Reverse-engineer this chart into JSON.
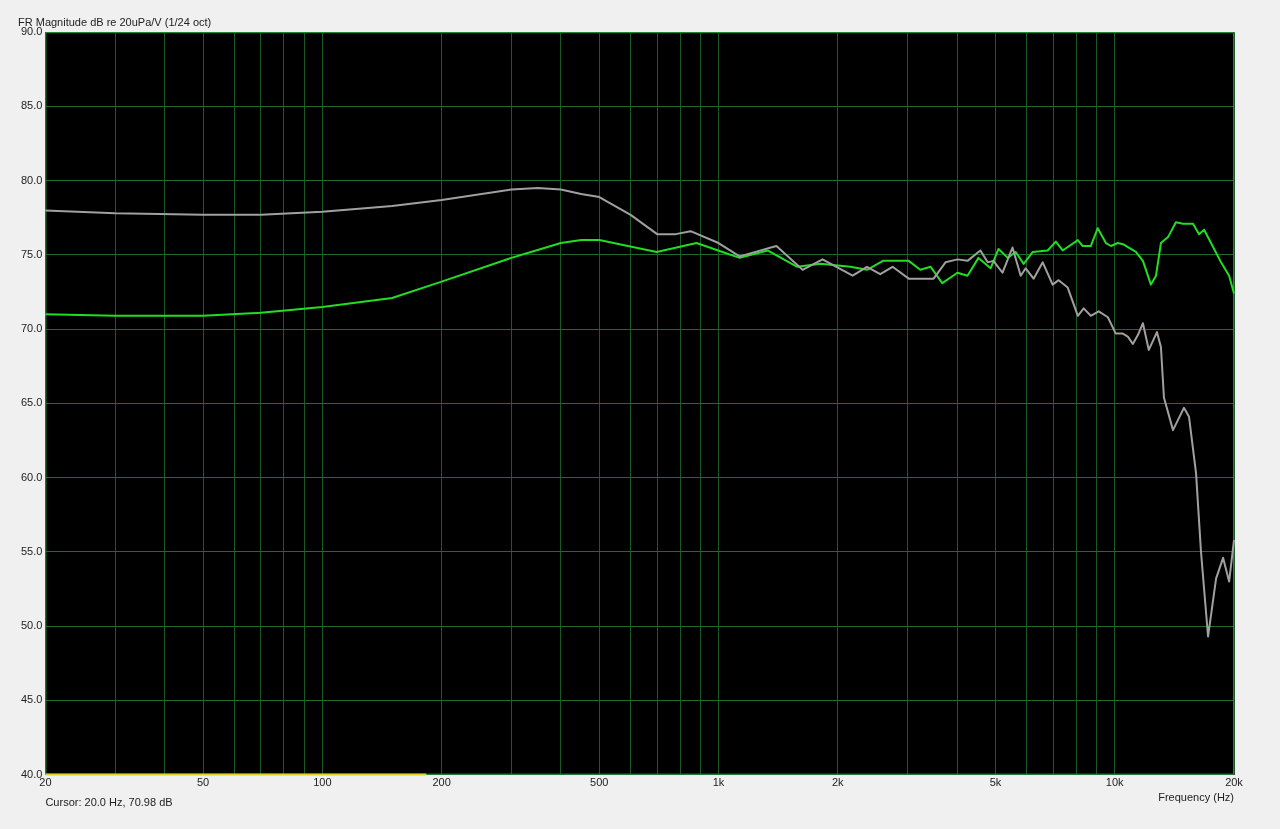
{
  "chart_data": {
    "type": "line",
    "title": "FR Magnitude dB re 20uPa/V (1/24 oct)",
    "xlabel": "Frequency (Hz)",
    "annotations": [
      "Cursor: 20.0 Hz, 70.98 dB"
    ],
    "log": "x",
    "xlim": [
      20,
      20000
    ],
    "ylim": [
      40,
      90
    ],
    "xticks": [
      {
        "value": 20,
        "label": "20"
      },
      {
        "value": 30,
        "label": null
      },
      {
        "value": 40,
        "label": null
      },
      {
        "value": 50,
        "label": "50"
      },
      {
        "value": 60,
        "label": null
      },
      {
        "value": 70,
        "label": null
      },
      {
        "value": 80,
        "label": null
      },
      {
        "value": 90,
        "label": null
      },
      {
        "value": 100,
        "label": "100"
      },
      {
        "value": 200,
        "label": "200"
      },
      {
        "value": 300,
        "label": null
      },
      {
        "value": 400,
        "label": null
      },
      {
        "value": 500,
        "label": "500"
      },
      {
        "value": 600,
        "label": null
      },
      {
        "value": 700,
        "label": null
      },
      {
        "value": 800,
        "label": null
      },
      {
        "value": 900,
        "label": null
      },
      {
        "value": 1000,
        "label": "1k"
      },
      {
        "value": 2000,
        "label": "2k"
      },
      {
        "value": 3000,
        "label": null
      },
      {
        "value": 4000,
        "label": null
      },
      {
        "value": 5000,
        "label": "5k"
      },
      {
        "value": 6000,
        "label": null
      },
      {
        "value": 7000,
        "label": null
      },
      {
        "value": 8000,
        "label": null
      },
      {
        "value": 9000,
        "label": null
      },
      {
        "value": 10000,
        "label": "10k"
      },
      {
        "value": 20000,
        "label": "20k"
      }
    ],
    "yticks": [
      {
        "value": 40,
        "label": "40.0"
      },
      {
        "value": 45,
        "label": "45.0"
      },
      {
        "value": 50,
        "label": "50.0"
      },
      {
        "value": 55,
        "label": "55.0"
      },
      {
        "value": 60,
        "label": "60.0"
      },
      {
        "value": 65,
        "label": "65.0"
      },
      {
        "value": 70,
        "label": "70.0"
      },
      {
        "value": 75,
        "label": "75.0"
      },
      {
        "value": 80,
        "label": "80.0"
      },
      {
        "value": 85,
        "label": "85.0"
      },
      {
        "value": 90,
        "label": "90.0"
      }
    ],
    "grid": true,
    "legend": false,
    "marker": "none",
    "line_style": "solid",
    "series": [
      {
        "color": "#a0a0a0",
        "x": [
          20,
          30,
          50,
          70,
          100,
          150,
          200,
          300,
          350,
          400,
          450,
          500,
          600,
          700,
          780,
          850,
          1000,
          1130,
          1400,
          1630,
          1830,
          2180,
          2370,
          2560,
          2750,
          3020,
          3490,
          3740,
          4010,
          4250,
          4580,
          4780,
          4940,
          5210,
          5520,
          5790,
          5960,
          6240,
          6580,
          6970,
          7220,
          7610,
          8070,
          8350,
          8700,
          9110,
          9610,
          10060,
          10480,
          10790,
          11110,
          11440,
          11780,
          12190,
          12780,
          13080,
          13310,
          14030,
          14950,
          15400,
          16040,
          16510,
          17200,
          18020,
          18770,
          19440,
          20000
        ],
        "values": [
          78.0,
          77.8,
          77.7,
          77.7,
          77.9,
          78.3,
          78.7,
          79.4,
          79.5,
          79.4,
          79.1,
          78.9,
          77.7,
          76.4,
          76.4,
          76.6,
          75.8,
          74.9,
          75.6,
          74.0,
          74.7,
          73.6,
          74.2,
          73.7,
          74.2,
          73.4,
          73.4,
          74.5,
          74.7,
          74.6,
          75.3,
          74.5,
          74.6,
          73.8,
          75.5,
          73.6,
          74.1,
          73.4,
          74.5,
          73.0,
          73.3,
          72.8,
          70.9,
          71.4,
          70.9,
          71.2,
          70.8,
          69.7,
          69.7,
          69.5,
          69.0,
          69.6,
          70.4,
          68.6,
          69.8,
          68.8,
          65.4,
          63.2,
          64.7,
          64.1,
          60.3,
          55.0,
          49.3,
          53.2,
          54.6,
          53.0,
          55.8
        ]
      },
      {
        "color": "#22dd22",
        "x": [
          20,
          30,
          50,
          70,
          100,
          150,
          200,
          300,
          400,
          450,
          500,
          698,
          880,
          1130,
          1330,
          1580,
          1810,
          2150,
          2370,
          2600,
          3020,
          3230,
          3430,
          3670,
          4010,
          4250,
          4530,
          4860,
          5090,
          5370,
          5620,
          5890,
          6210,
          6770,
          7100,
          7390,
          8070,
          8300,
          8700,
          9060,
          9500,
          9780,
          10180,
          10540,
          11310,
          11780,
          12340,
          12710,
          13080,
          13630,
          14270,
          14870,
          15760,
          16320,
          16810,
          17500,
          18550,
          19440,
          20000
        ],
        "values": [
          71.0,
          70.9,
          70.9,
          71.1,
          71.5,
          72.1,
          73.2,
          74.8,
          75.8,
          76.0,
          76.0,
          75.2,
          75.8,
          74.8,
          75.3,
          74.2,
          74.4,
          74.2,
          74.0,
          74.6,
          74.6,
          74.0,
          74.2,
          73.1,
          73.8,
          73.6,
          74.8,
          74.1,
          75.4,
          74.8,
          75.2,
          74.4,
          75.2,
          75.3,
          75.9,
          75.3,
          76.0,
          75.6,
          75.6,
          76.8,
          75.8,
          75.6,
          75.8,
          75.7,
          75.2,
          74.6,
          73.0,
          73.6,
          75.8,
          76.2,
          77.2,
          77.1,
          77.1,
          76.4,
          76.7,
          75.8,
          74.5,
          73.6,
          72.4
        ]
      },
      {
        "color": "#d8d820",
        "x": [
          20,
          183
        ],
        "values": [
          40,
          40
        ]
      }
    ]
  }
}
